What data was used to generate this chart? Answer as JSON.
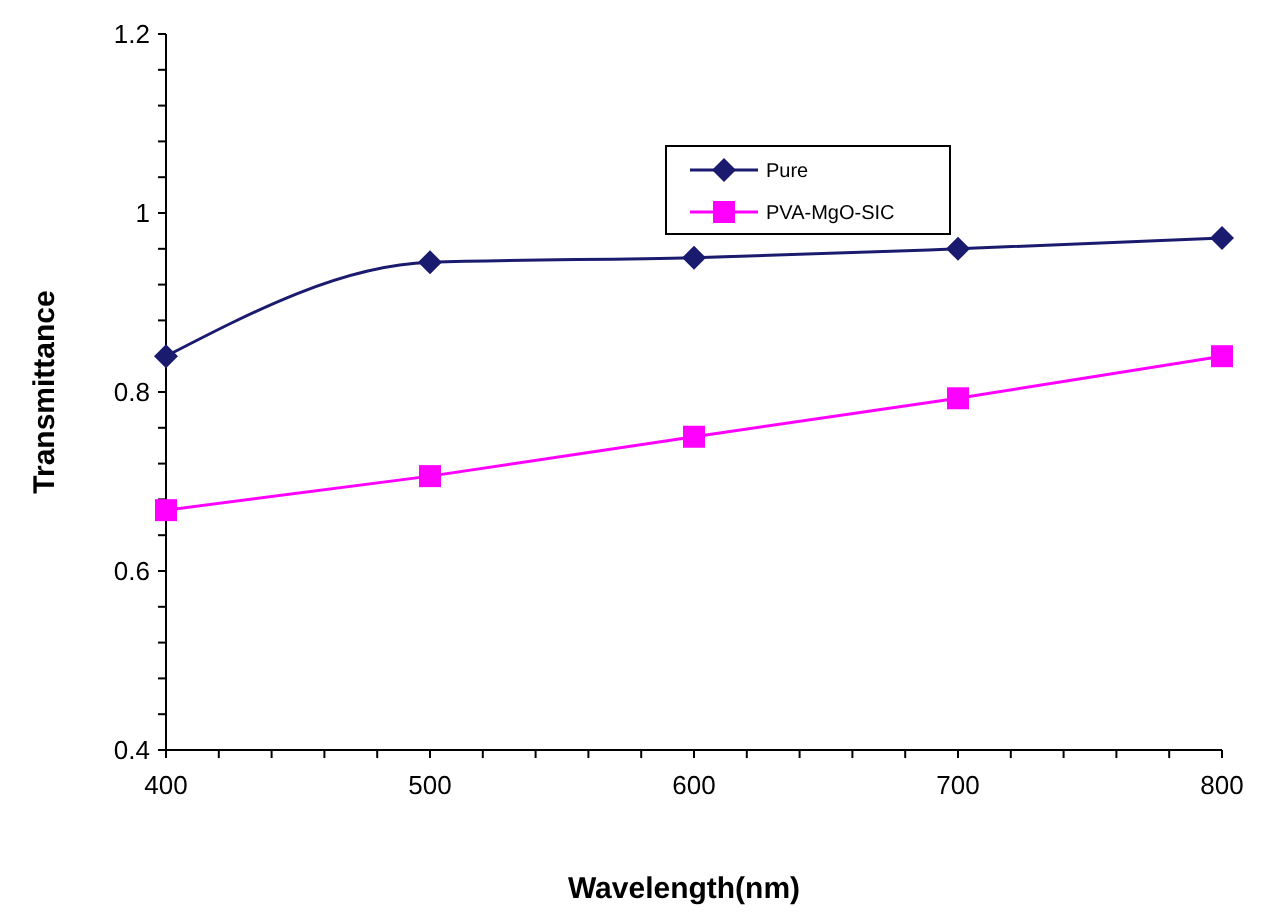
{
  "chart_data": {
    "type": "line",
    "xlabel": "Wavelength(nm)",
    "ylabel": "Transmittance",
    "x": [
      400,
      500,
      600,
      700,
      800
    ],
    "series": [
      {
        "name": "Pure",
        "color": "#1a1a6e",
        "values": [
          0.84,
          0.945,
          0.95,
          0.96,
          0.972
        ],
        "marker": "diamond"
      },
      {
        "name": "PVA-MgO-SIC",
        "color": "#ff00ff",
        "values": [
          0.668,
          0.706,
          0.75,
          0.793,
          0.84
        ],
        "marker": "square"
      }
    ],
    "xlim": [
      400,
      800
    ],
    "xticks": [
      400,
      {
        "value": 420,
        "label": null
      },
      {
        "value": 440,
        "label": null
      },
      {
        "value": 460,
        "label": null
      },
      {
        "value": 480,
        "label": null
      },
      500,
      {
        "value": 520,
        "label": null
      },
      {
        "value": 540,
        "label": null
      },
      {
        "value": 560,
        "label": null
      },
      {
        "value": 580,
        "label": null
      },
      600,
      {
        "value": 620,
        "label": null
      },
      {
        "value": 640,
        "label": null
      },
      {
        "value": 660,
        "label": null
      },
      {
        "value": 680,
        "label": null
      },
      700,
      {
        "value": 720,
        "label": null
      },
      {
        "value": 740,
        "label": null
      },
      {
        "value": 760,
        "label": null
      },
      {
        "value": 780,
        "label": null
      },
      800
    ],
    "ylim": [
      0.4,
      1.2
    ],
    "yticks": [
      {
        "value": 0.4,
        "label": "0.4"
      },
      {
        "value": 0.44,
        "label": null
      },
      {
        "value": 0.48,
        "label": null
      },
      {
        "value": 0.52,
        "label": null
      },
      {
        "value": 0.56,
        "label": null
      },
      {
        "value": 0.6,
        "label": "0.6"
      },
      {
        "value": 0.64,
        "label": null
      },
      {
        "value": 0.68,
        "label": null
      },
      {
        "value": 0.72,
        "label": null
      },
      {
        "value": 0.76,
        "label": null
      },
      {
        "value": 0.8,
        "label": "0.8"
      },
      {
        "value": 0.84,
        "label": null
      },
      {
        "value": 0.88,
        "label": null
      },
      {
        "value": 0.92,
        "label": null
      },
      {
        "value": 0.96,
        "label": null
      },
      {
        "value": 1,
        "label": "1"
      },
      {
        "value": 1.04,
        "label": null
      },
      {
        "value": 1.08,
        "label": null
      },
      {
        "value": 1.12,
        "label": null
      },
      {
        "value": 1.16,
        "label": null
      },
      {
        "value": 1.2,
        "label": "1.2"
      }
    ],
    "legend": "top right",
    "grid": false
  }
}
